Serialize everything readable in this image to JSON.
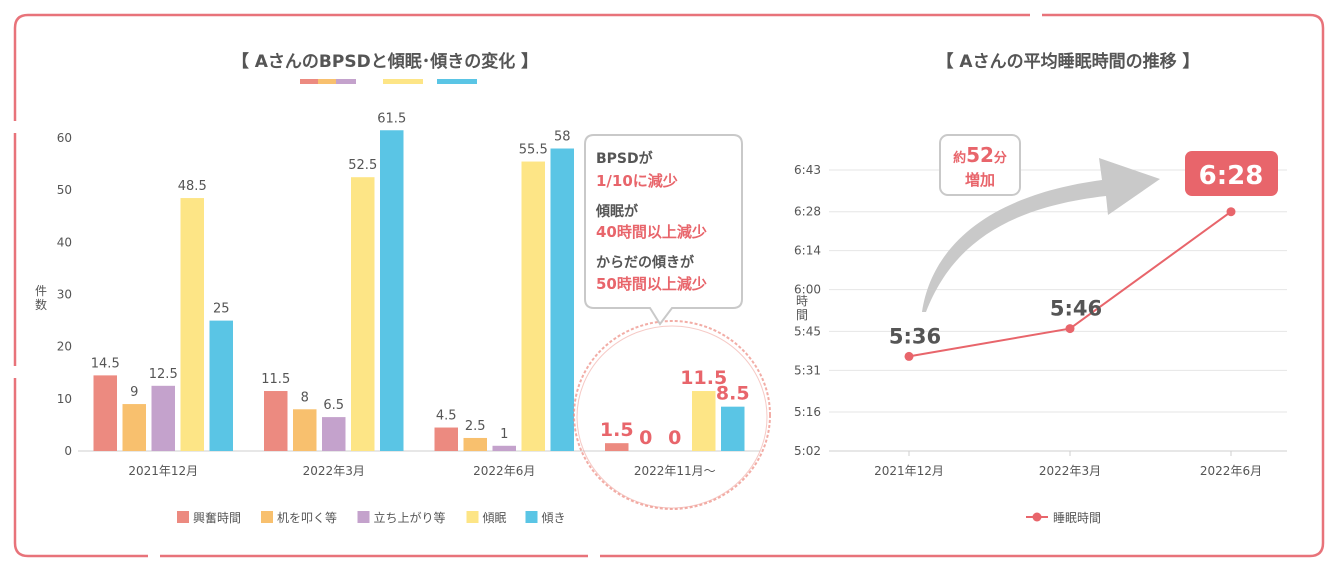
{
  "colors": {
    "frame": "#e8737a",
    "accent": "#e8656b",
    "text": "#555555",
    "grid": "#e3e3e3",
    "arrow": "#c9c9c9"
  },
  "left_chart": {
    "title": "【 AさんのBPSDと傾眠･傾きの変化 】",
    "ylabel": "件数",
    "callout": {
      "line1": "BPSDが",
      "line2": "1/10に減少",
      "line3": "傾眠が",
      "line4": "40時間以上減少",
      "line5": "からだの傾きが",
      "line6": "50時間以上減少"
    }
  },
  "right_chart": {
    "title": "【 Aさんの平均睡眠時間の推移 】",
    "ylabel": "時間",
    "badge_text": "6:28",
    "increase_line1_prefix": "約",
    "increase_line1_num": "52",
    "increase_line1_suffix": "分",
    "increase_line2": "増加"
  },
  "chart_data": [
    {
      "type": "bar",
      "title": "【 AさんのBPSDと傾眠･傾きの変化 】",
      "ylabel": "件数",
      "categories": [
        "2021年12月",
        "2022年3月",
        "2022年6月",
        "2022年11月～"
      ],
      "ylim": [
        0,
        65
      ],
      "yticks": [
        0,
        10,
        20,
        30,
        40,
        50,
        60
      ],
      "grid": false,
      "legend_position": "bottom",
      "series": [
        {
          "name": "興奮時間",
          "color": "#ec8a80",
          "values": [
            14.5,
            11.5,
            4.5,
            1.5
          ],
          "labels": [
            "14.5",
            "11.5",
            "4.5",
            "1.5"
          ]
        },
        {
          "name": "机を叩く等",
          "color": "#f8c06e",
          "values": [
            9,
            8,
            2.5,
            0
          ],
          "labels": [
            "9",
            "8",
            "2.5",
            "0"
          ]
        },
        {
          "name": "立ち上がり等",
          "color": "#c4a2cc",
          "values": [
            12.5,
            6.5,
            1,
            0
          ],
          "labels": [
            "12.5",
            "6.5",
            "1",
            "0"
          ]
        },
        {
          "name": "傾眠",
          "color": "#fde586",
          "values": [
            48.5,
            52.5,
            55.5,
            11.5
          ],
          "labels": [
            "48.5",
            "52.5",
            "55.5",
            "11.5"
          ]
        },
        {
          "name": "傾き",
          "color": "#5ac5e5",
          "values": [
            25,
            61.5,
            58,
            8.5
          ],
          "labels": [
            "25",
            "61.5",
            "58",
            "8.5"
          ]
        }
      ]
    },
    {
      "type": "line",
      "title": "【 Aさんの平均睡眠時間の推移 】",
      "ylabel": "時間",
      "x": [
        "2021年12月",
        "2022年3月",
        "2022年6月"
      ],
      "y_minutes": [
        336,
        346,
        388
      ],
      "point_labels": [
        "5:36",
        "5:46",
        "6:28"
      ],
      "yticks": [
        "5:02",
        "5:16",
        "5:31",
        "5:45",
        "6:00",
        "6:14",
        "6:28",
        "6:43"
      ],
      "ytick_minutes": [
        302,
        316,
        331,
        345,
        360,
        374,
        388,
        403
      ],
      "grid": true,
      "legend_position": "bottom",
      "series": [
        {
          "name": "睡眠時間",
          "color": "#e8656b"
        }
      ]
    }
  ]
}
